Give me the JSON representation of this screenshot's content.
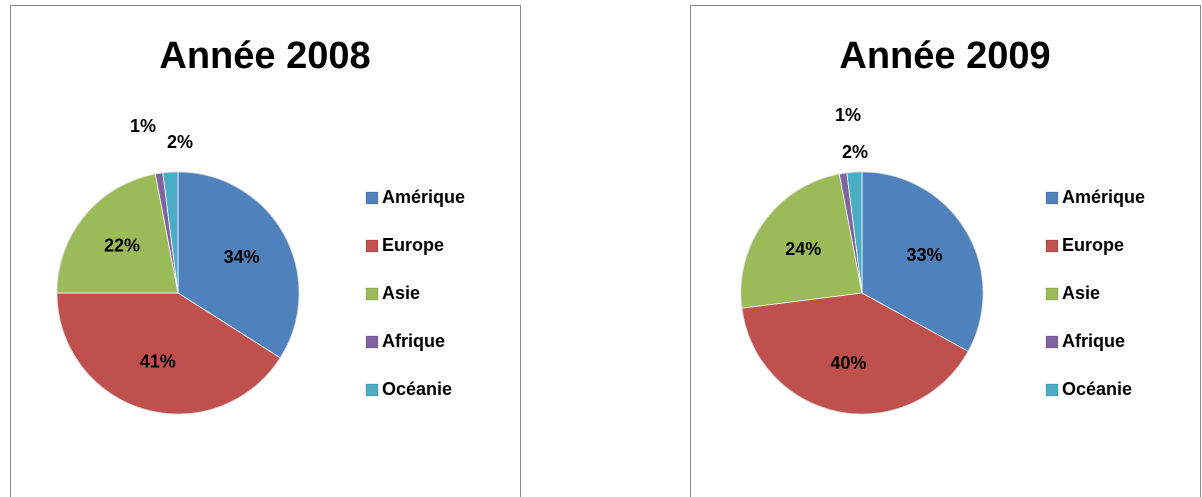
{
  "chart_data": [
    {
      "type": "pie",
      "title": "Année 2008",
      "categories": [
        "Amérique",
        "Europe",
        "Asie",
        "Afrique",
        "Océanie"
      ],
      "values": [
        34,
        41,
        22,
        1,
        2
      ],
      "value_labels": [
        "34%",
        "41%",
        "22%",
        "1%",
        "2%"
      ],
      "colors": [
        "#4f81bd",
        "#c0504d",
        "#9bbb59",
        "#8064a2",
        "#4bacc6"
      ],
      "legend": "right"
    },
    {
      "type": "pie",
      "title": "Année 2009",
      "categories": [
        "Amérique",
        "Europe",
        "Asie",
        "Afrique",
        "Océanie"
      ],
      "values": [
        33,
        40,
        24,
        1,
        2
      ],
      "value_labels": [
        "33%",
        "40%",
        "24%",
        "1%",
        "2%"
      ],
      "colors": [
        "#4f81bd",
        "#c0504d",
        "#9bbb59",
        "#8064a2",
        "#4bacc6"
      ],
      "legend": "right"
    }
  ]
}
